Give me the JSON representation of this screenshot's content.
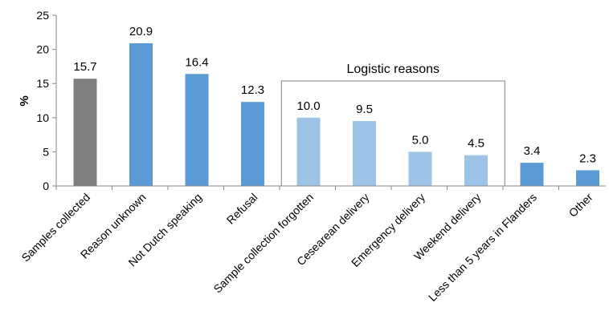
{
  "chart_data": {
    "type": "bar",
    "ylabel": "%",
    "ylim": [
      0,
      25
    ],
    "yticks": [
      "0",
      "5",
      "10",
      "15",
      "20",
      "25"
    ],
    "grid": false,
    "categories": [
      "Samples collected",
      "Reason unknown",
      "Not Dutch speaking",
      "Refusal",
      "Sample collection forgotten",
      "Cesearean delivery",
      "Emergency delivery",
      "Weekend delivery",
      "Less than 5 years in Flanders",
      "Other"
    ],
    "values": [
      15.7,
      20.9,
      16.4,
      12.3,
      10.0,
      9.5,
      5.0,
      4.5,
      3.4,
      2.3
    ],
    "data_labels": [
      "15.7",
      "20.9",
      "16.4",
      "12.3",
      "10.0",
      "9.5",
      "5.0",
      "4.5",
      "3.4",
      "2.3"
    ],
    "bar_colors": [
      "#7f7f7f",
      "#5b9bd5",
      "#5b9bd5",
      "#5b9bd5",
      "#9dc3e6",
      "#9dc3e6",
      "#9dc3e6",
      "#9dc3e6",
      "#5b9bd5",
      "#5b9bd5"
    ],
    "annotation": {
      "text": "Logistic reasons",
      "categories": [
        "Sample collection forgotten",
        "Cesearean delivery",
        "Emergency delivery",
        "Weekend delivery"
      ]
    }
  }
}
